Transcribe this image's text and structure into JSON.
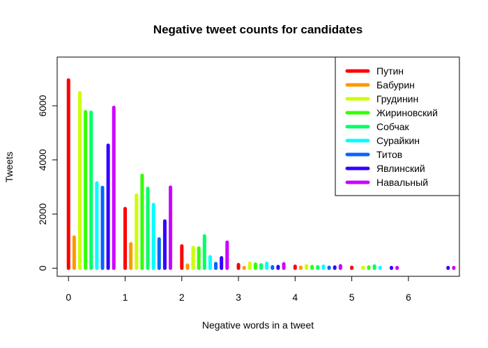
{
  "chart_data": {
    "type": "bar",
    "title": "Negative tweet counts for candidates",
    "xlabel": "Negative words in a tweet",
    "ylabel": "Tweets",
    "xlim": [
      -0.2,
      6.9
    ],
    "ylim": [
      -300,
      7800
    ],
    "x_ticks": [
      0,
      1,
      2,
      3,
      4,
      5,
      6
    ],
    "y_ticks": [
      0,
      2000,
      4000,
      6000
    ],
    "y_tick_labels": [
      "0",
      "2000",
      "4000",
      "6000"
    ],
    "x_tick_labels": [
      "0",
      "1",
      "2",
      "3",
      "4",
      "5",
      "6"
    ],
    "grid": false,
    "legend_position": "top-right",
    "series_offset_step": 0.1,
    "categories": [
      0,
      1,
      2,
      3,
      4,
      5,
      6
    ],
    "series": [
      {
        "name": "Путин",
        "color": "#ff0000",
        "values": [
          6950,
          2200,
          820,
          130,
          70,
          30,
          null
        ]
      },
      {
        "name": "Бабурин",
        "color": "#ff9900",
        "values": [
          1150,
          900,
          110,
          20,
          30,
          null,
          null
        ]
      },
      {
        "name": "Грудинин",
        "color": "#ccff00",
        "values": [
          6480,
          2700,
          760,
          180,
          90,
          30,
          null
        ]
      },
      {
        "name": "Жириновский",
        "color": "#33ff00",
        "values": [
          5780,
          3430,
          740,
          150,
          60,
          40,
          null
        ]
      },
      {
        "name": "Собчак",
        "color": "#00ff66",
        "values": [
          5760,
          2950,
          1190,
          120,
          50,
          80,
          null
        ]
      },
      {
        "name": "Сурайкин",
        "color": "#00ffff",
        "values": [
          3150,
          2350,
          420,
          180,
          70,
          20,
          null
        ]
      },
      {
        "name": "Титов",
        "color": "#0066ff",
        "values": [
          2980,
          1080,
          170,
          50,
          30,
          null,
          null
        ]
      },
      {
        "name": "Явлинский",
        "color": "#3300ff",
        "values": [
          4540,
          1740,
          380,
          60,
          40,
          20,
          20
        ]
      },
      {
        "name": "Навальный",
        "color": "#cc00ff",
        "values": [
          5940,
          2990,
          960,
          160,
          90,
          20,
          20
        ]
      }
    ]
  }
}
